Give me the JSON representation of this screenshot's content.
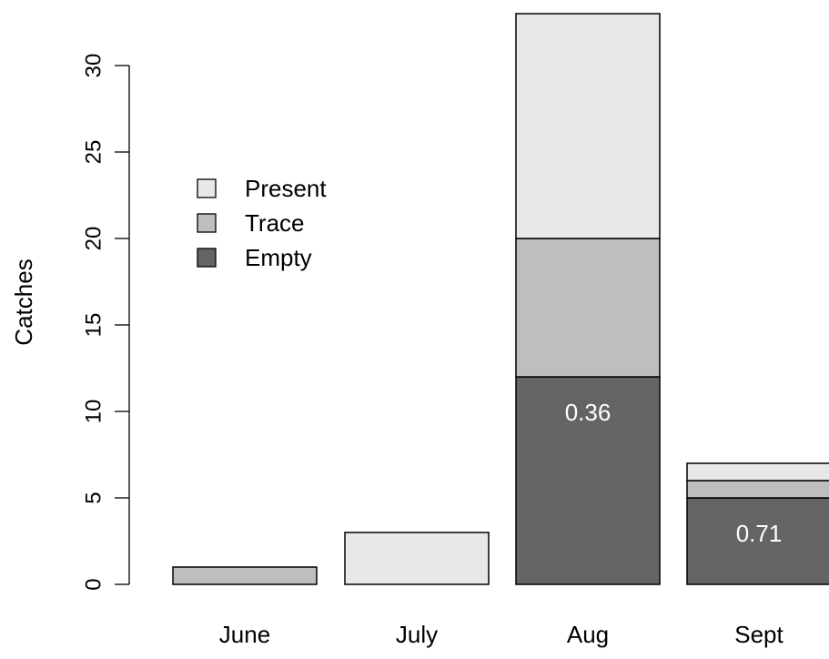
{
  "chart_data": {
    "type": "bar",
    "stacked": true,
    "categories": [
      "June",
      "July",
      "Aug",
      "Sept"
    ],
    "series": [
      {
        "name": "Empty",
        "values": [
          0,
          0,
          12,
          5
        ],
        "color": "#646464"
      },
      {
        "name": "Trace",
        "values": [
          1,
          0,
          8,
          1
        ],
        "color": "#bebebe"
      },
      {
        "name": "Present",
        "values": [
          0,
          3,
          13,
          1
        ],
        "color": "#e8e8e8"
      }
    ],
    "legend": {
      "position": "top-left",
      "order": [
        "Present",
        "Trace",
        "Empty"
      ]
    },
    "bar_labels": [
      {
        "category": "Aug",
        "series": "Empty",
        "text": "0.36"
      },
      {
        "category": "Sept",
        "series": "Empty",
        "text": "0.71"
      }
    ],
    "ylabel": "Catches",
    "xlabel": "",
    "title": "",
    "ylim": [
      0,
      33
    ],
    "yticks": [
      0,
      5,
      10,
      15,
      20,
      25,
      30
    ],
    "grid": false
  }
}
